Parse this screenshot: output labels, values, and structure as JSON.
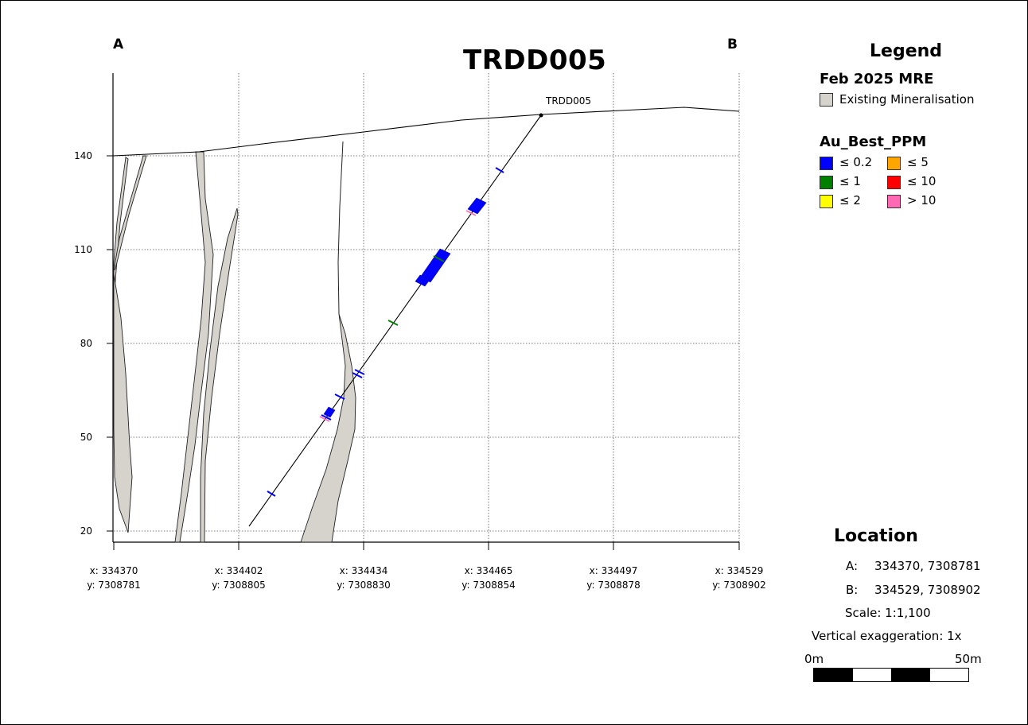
{
  "title": "TRDD005",
  "section_ends": {
    "a": "A",
    "b": "B"
  },
  "collar_label": "TRDD005",
  "chart_data": {
    "type": "cross-section",
    "y_ticks": [
      "140",
      "110",
      "80",
      "50",
      "20"
    ],
    "y_values": [
      140,
      110,
      80,
      50,
      20
    ],
    "x_ticks": [
      {
        "x": "x: 334370",
        "y": "y: 7308781"
      },
      {
        "x": "x: 334402",
        "y": "y: 7308805"
      },
      {
        "x": "x: 334434",
        "y": "y: 7308830"
      },
      {
        "x": "x: 334465",
        "y": "y: 7308854"
      },
      {
        "x": "x: 334497",
        "y": "y: 7308878"
      },
      {
        "x": "x: 334529",
        "y": "y: 7308902"
      }
    ],
    "grid": true
  },
  "legend": {
    "title": "Legend",
    "mre_title": "Feb 2025 MRE",
    "mre_item": {
      "label": "Existing Mineralisation",
      "color": "#d6d2cc"
    },
    "au_title": "Au_Best_PPM",
    "au_items": [
      {
        "label": "≤ 0.2",
        "color": "#0000ff"
      },
      {
        "label": "≤ 5",
        "color": "#ffa500"
      },
      {
        "label": "≤ 1",
        "color": "#008000"
      },
      {
        "label": "≤ 10",
        "color": "#ff0000"
      },
      {
        "label": "≤ 2",
        "color": "#ffff00"
      },
      {
        "label": "> 10",
        "color": "#ff69b4"
      }
    ]
  },
  "location": {
    "title": "Location",
    "a_label": "A:",
    "a_value": "334370, 7308781",
    "b_label": "B:",
    "b_value": "334529, 7308902",
    "scale": "Scale: 1:1,100",
    "vertical_exaggeration": "Vertical exaggeration: 1x",
    "scalebar_start": "0m",
    "scalebar_end": "50m"
  }
}
